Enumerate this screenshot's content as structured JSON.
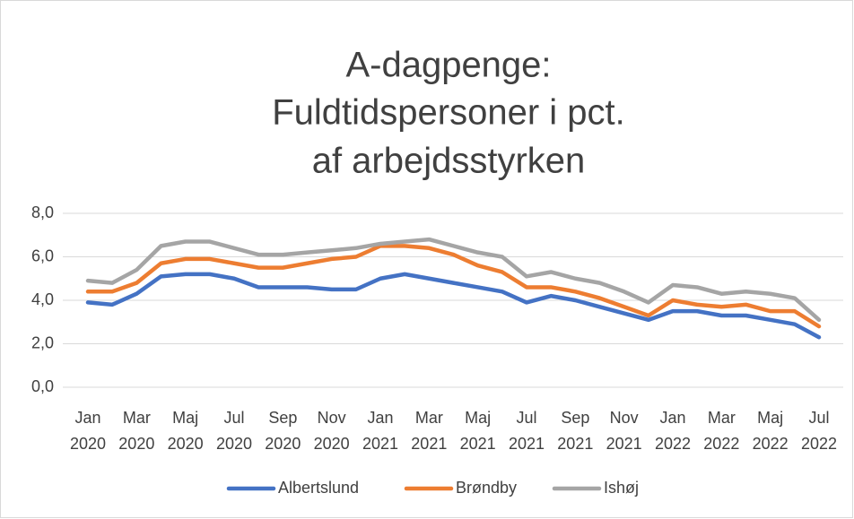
{
  "chart_data": {
    "type": "line",
    "title": [
      "A-dagpenge:",
      "Fuldtidspersoner i pct.",
      "af arbejdsstyrken"
    ],
    "categories": [
      "Jan 2020",
      null,
      "Mar 2020",
      null,
      "Maj 2020",
      null,
      "Jul 2020",
      null,
      "Sep 2020",
      null,
      "Nov 2020",
      null,
      "Jan 2021",
      null,
      "Mar 2021",
      null,
      "Maj 2021",
      null,
      "Jul 2021",
      null,
      "Sep 2021",
      null,
      "Nov 2021",
      null,
      "Jan 2022",
      null,
      "Mar 2022",
      null,
      "Maj 2022",
      null,
      "Jul 2022"
    ],
    "series": [
      {
        "name": "Albertslund",
        "color": "#4472c4",
        "values": [
          3.9,
          3.8,
          4.3,
          5.1,
          5.2,
          5.2,
          5.0,
          4.6,
          4.6,
          4.6,
          4.5,
          4.5,
          5.0,
          5.2,
          5.0,
          4.8,
          4.6,
          4.4,
          3.9,
          4.2,
          4.0,
          3.7,
          3.4,
          3.1,
          3.5,
          3.5,
          3.3,
          3.3,
          3.1,
          2.9,
          2.3
        ]
      },
      {
        "name": "Brøndby",
        "color": "#ed7d31",
        "values": [
          4.4,
          4.4,
          4.8,
          5.7,
          5.9,
          5.9,
          5.7,
          5.5,
          5.5,
          5.7,
          5.9,
          6.0,
          6.5,
          6.5,
          6.4,
          6.1,
          5.6,
          5.3,
          4.6,
          4.6,
          4.4,
          4.1,
          3.7,
          3.3,
          4.0,
          3.8,
          3.7,
          3.8,
          3.5,
          3.5,
          2.8
        ]
      },
      {
        "name": "Ishøj",
        "color": "#a5a5a5",
        "values": [
          4.9,
          4.8,
          5.4,
          6.5,
          6.7,
          6.7,
          6.4,
          6.1,
          6.1,
          6.2,
          6.3,
          6.4,
          6.6,
          6.7,
          6.8,
          6.5,
          6.2,
          6.0,
          5.1,
          5.3,
          5.0,
          4.8,
          4.4,
          3.9,
          4.7,
          4.6,
          4.3,
          4.4,
          4.3,
          4.1,
          3.1
        ]
      }
    ],
    "ylim": [
      0,
      8
    ],
    "yticks": [
      {
        "value": 0,
        "label": "0,0"
      },
      {
        "value": 2,
        "label": "2,0"
      },
      {
        "value": 4,
        "label": "4,0"
      },
      {
        "value": 6,
        "label": "6,0"
      },
      {
        "value": 8,
        "label": "8,0"
      }
    ],
    "grid": true,
    "legend": "bottom"
  }
}
